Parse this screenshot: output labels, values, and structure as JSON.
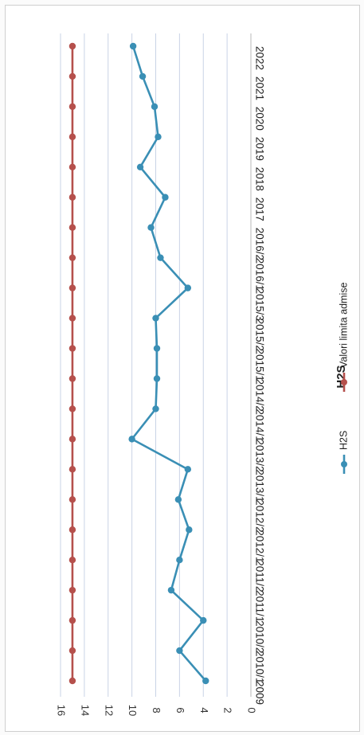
{
  "chart_data": {
    "type": "line",
    "title": "H2S",
    "categories": [
      "2009",
      "2010/1",
      "2010/2",
      "2011/1",
      "2011/2",
      "2012/1",
      "2012/2",
      "2013/1",
      "2013/2",
      "2014/1",
      "2014/2",
      "2015/1",
      "2015/2",
      "2015/3",
      "2016/1",
      "2016/2",
      "2017",
      "2018",
      "2019",
      "2020",
      "2021",
      "2022"
    ],
    "series": [
      {
        "name": "H2S",
        "color": "#3a8fb5",
        "values": [
          3.8,
          6.0,
          4.0,
          6.7,
          6.0,
          5.2,
          6.1,
          5.3,
          10.0,
          8.0,
          7.9,
          7.9,
          8.0,
          5.3,
          7.6,
          8.4,
          7.2,
          9.3,
          7.8,
          8.1,
          9.1,
          9.9
        ]
      },
      {
        "name": "Valori limita admise",
        "color": "#b5504c",
        "values": [
          15,
          15,
          15,
          15,
          15,
          15,
          15,
          15,
          15,
          15,
          15,
          15,
          15,
          15,
          15,
          15,
          15,
          15,
          15,
          15,
          15,
          15
        ]
      }
    ],
    "y_ticks": [
      "0",
      "2",
      "4",
      "6",
      "8",
      "10",
      "12",
      "14",
      "16"
    ],
    "ylim": [
      0,
      16
    ],
    "grid": true,
    "legend_position": "bottom",
    "orientation": "rotated-90-clockwise"
  }
}
